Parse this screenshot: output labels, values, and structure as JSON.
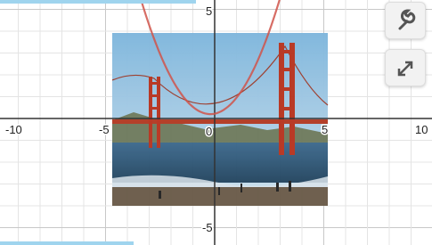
{
  "axes": {
    "x_labels": [
      "-10",
      "-5",
      "0",
      "5",
      "10"
    ],
    "y_labels": [
      "5",
      "-5"
    ]
  }
}
